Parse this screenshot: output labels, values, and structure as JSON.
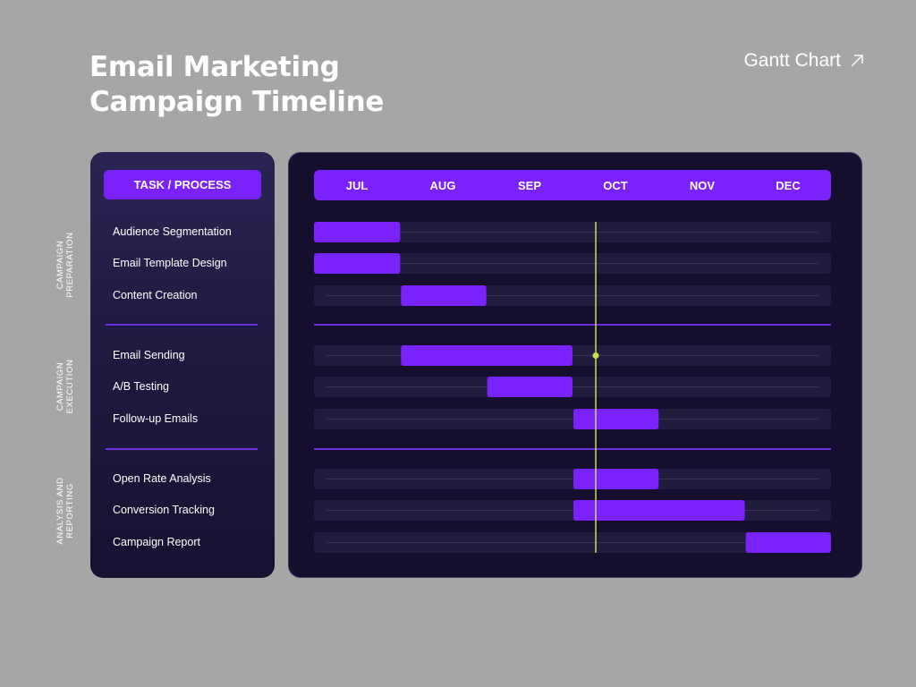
{
  "title_line1": "Email Marketing",
  "title_line2": "Campaign Timeline",
  "link_label": "Gantt Chart",
  "header_label": "TASK / PROCESS",
  "colors": {
    "background": "#a6a6a6",
    "bar": "#7a22fb",
    "panel": "#150f2d",
    "today_line": "#c8e04a"
  },
  "chart_data": {
    "type": "gantt",
    "months": [
      "JUL",
      "AUG",
      "SEP",
      "OCT",
      "NOV",
      "DEC"
    ],
    "today_marker": {
      "month_index": 3.27,
      "marked_task_index": 3
    },
    "groups": [
      {
        "name_line1": "CAMPAIGN",
        "name_line2": "PREPARATION"
      },
      {
        "name_line1": "CAMPAIGN",
        "name_line2": "EXECUTION"
      },
      {
        "name_line1": "ANALYSIS AND",
        "name_line2": "REPORTING"
      }
    ],
    "tasks": [
      {
        "name": "Audience Segmentation",
        "group": 0,
        "start": "JUL",
        "end": "JUL"
      },
      {
        "name": "Email Template Design",
        "group": 0,
        "start": "JUL",
        "end": "JUL"
      },
      {
        "name": "Content Creation",
        "group": 0,
        "start": "AUG",
        "end": "AUG"
      },
      {
        "name": "Email Sending",
        "group": 1,
        "start": "AUG",
        "end": "SEP"
      },
      {
        "name": "A/B Testing",
        "group": 1,
        "start": "SEP",
        "end": "SEP"
      },
      {
        "name": "Follow-up Emails",
        "group": 1,
        "start": "OCT",
        "end": "OCT"
      },
      {
        "name": "Open Rate Analysis",
        "group": 2,
        "start": "OCT",
        "end": "OCT"
      },
      {
        "name": "Conversion Tracking",
        "group": 2,
        "start": "OCT",
        "end": "NOV"
      },
      {
        "name": "Campaign Report",
        "group": 2,
        "start": "DEC",
        "end": "DEC"
      }
    ]
  }
}
